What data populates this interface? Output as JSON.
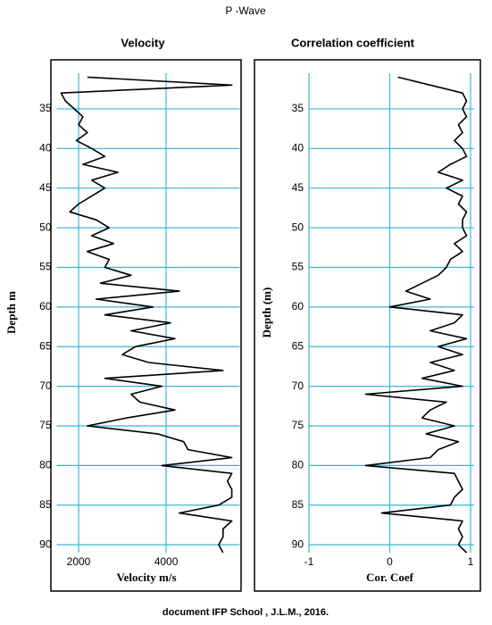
{
  "title": "P -Wave",
  "footer": "document IFP School , J.L.M., 2016.",
  "chart_data": [
    {
      "type": "line",
      "title": "Velocity",
      "xlabel": "Velocity m/s",
      "ylabel": "Depth m",
      "color": "#000000",
      "depth": [
        31,
        32,
        33,
        34,
        35,
        36,
        37,
        38,
        39,
        40,
        41,
        42,
        43,
        44,
        45,
        46,
        47,
        48,
        49,
        50,
        51,
        52,
        53,
        54,
        55,
        56,
        57,
        58,
        59,
        60,
        61,
        62,
        63,
        64,
        65,
        66,
        67,
        68,
        69,
        70,
        71,
        72,
        73,
        74,
        75,
        76,
        77,
        78,
        79,
        80,
        81,
        82,
        83,
        84,
        85,
        86,
        87,
        88,
        89,
        90,
        91
      ],
      "values": [
        2200,
        5500,
        1600,
        1700,
        1900,
        2100,
        2000,
        2200,
        1950,
        2300,
        2600,
        2100,
        2900,
        2300,
        2600,
        2300,
        2000,
        1800,
        2400,
        2700,
        2300,
        2800,
        2200,
        2700,
        2600,
        3200,
        2500,
        4300,
        2400,
        3700,
        2600,
        4100,
        3200,
        4200,
        3300,
        3000,
        3600,
        5300,
        2600,
        3900,
        3200,
        3400,
        4200,
        3100,
        2200,
        3800,
        4400,
        4500,
        5500,
        3900,
        5500,
        5400,
        5500,
        5500,
        5200,
        4300,
        5500,
        5300,
        5300,
        5200,
        5300
      ],
      "xlim": [
        1500,
        5600
      ],
      "xticks": [
        2000,
        4000
      ],
      "ylim": [
        30.5,
        91
      ],
      "yticks": [
        35,
        40,
        45,
        50,
        55,
        60,
        65,
        70,
        75,
        80,
        85,
        90
      ],
      "grid": true
    },
    {
      "type": "line",
      "title": "Correlation coefficient",
      "xlabel": "Cor. Coef",
      "ylabel": "Depth (m)",
      "color": "#000000",
      "depth": [
        31,
        32,
        33,
        34,
        35,
        36,
        37,
        38,
        39,
        40,
        41,
        42,
        43,
        44,
        45,
        46,
        47,
        48,
        49,
        50,
        51,
        52,
        53,
        54,
        55,
        56,
        57,
        58,
        59,
        60,
        61,
        62,
        63,
        64,
        65,
        66,
        67,
        68,
        69,
        70,
        71,
        72,
        73,
        74,
        75,
        76,
        77,
        78,
        79,
        80,
        81,
        82,
        83,
        84,
        85,
        86,
        87,
        88,
        89,
        90,
        91
      ],
      "values": [
        0.1,
        0.5,
        0.9,
        0.95,
        0.9,
        0.95,
        0.85,
        0.9,
        0.8,
        0.9,
        0.95,
        0.75,
        0.6,
        0.9,
        0.7,
        0.9,
        0.85,
        0.95,
        0.9,
        0.9,
        0.95,
        0.8,
        0.9,
        0.75,
        0.7,
        0.6,
        0.4,
        0.2,
        0.5,
        0.0,
        0.9,
        0.8,
        0.5,
        0.95,
        0.6,
        0.9,
        0.5,
        0.8,
        0.4,
        0.9,
        -0.3,
        0.7,
        0.5,
        0.4,
        0.8,
        0.45,
        0.85,
        0.6,
        0.5,
        -0.3,
        0.8,
        0.85,
        0.9,
        0.8,
        0.75,
        -0.1,
        0.9,
        0.85,
        0.9,
        0.85,
        0.95
      ],
      "xlim": [
        -1,
        1
      ],
      "xticks": [
        -1,
        0,
        1
      ],
      "ylim": [
        30.5,
        91
      ],
      "yticks": [
        35,
        40,
        45,
        50,
        55,
        60,
        65,
        70,
        75,
        80,
        85,
        90
      ],
      "grid": true
    }
  ]
}
